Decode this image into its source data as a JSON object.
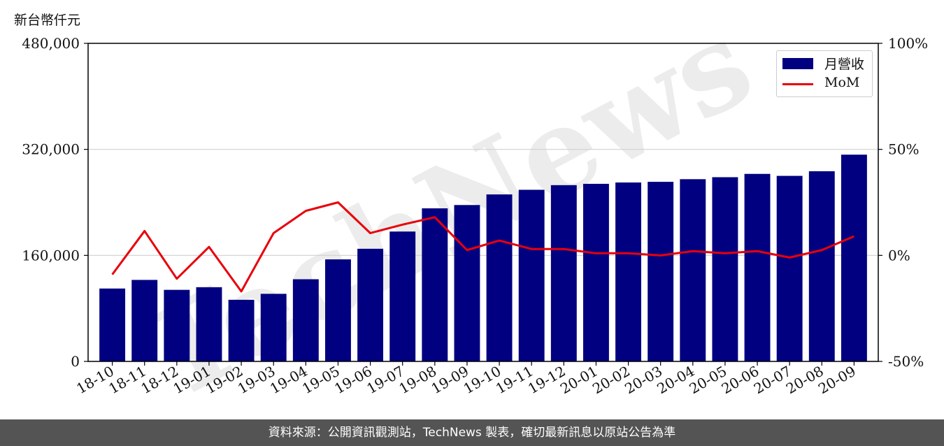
{
  "unit_label": "新台幣仟元",
  "footer_text": "資料來源：公開資訊觀測站，TechNews 製表，確切最新訊息以原站公告為準",
  "watermark_text": "TechNews",
  "colors": {
    "bar": "#000080",
    "line": "#e8000b",
    "footer_bg": "#545454",
    "grid": "#d0d0d0"
  },
  "chart_data": {
    "type": "bar",
    "categories": [
      "18-10",
      "18-11",
      "18-12",
      "19-01",
      "19-02",
      "19-03",
      "19-04",
      "19-05",
      "19-06",
      "19-07",
      "19-08",
      "19-09",
      "19-10",
      "19-11",
      "19-12",
      "20-01",
      "20-02",
      "20-03",
      "20-04",
      "20-05",
      "20-06",
      "20-07",
      "20-08",
      "20-09"
    ],
    "series": [
      {
        "name": "月營收",
        "type": "bar",
        "axis": "left",
        "values": [
          110000,
          123000,
          108000,
          112000,
          93000,
          102000,
          124000,
          154000,
          170000,
          196000,
          231000,
          236000,
          252000,
          259000,
          266000,
          268000,
          270000,
          271000,
          275000,
          278000,
          283000,
          280000,
          287000,
          312000
        ]
      },
      {
        "name": "MoM",
        "type": "line",
        "axis": "right",
        "values": [
          -9,
          11.5,
          -11,
          4,
          -17,
          10.5,
          21,
          25,
          10.5,
          14.5,
          18,
          2.5,
          7,
          3,
          3,
          1,
          1,
          0,
          2,
          1,
          2,
          -1,
          2.5,
          9
        ]
      }
    ],
    "left_axis": {
      "ylim": [
        0,
        480000
      ],
      "ticks": [
        "0",
        "160,000",
        "320,000",
        "480,000"
      ],
      "tick_values": [
        0,
        160000,
        320000,
        480000
      ]
    },
    "right_axis": {
      "ylim": [
        -50,
        100
      ],
      "ticks": [
        "-50%",
        "0%",
        "50%",
        "100%"
      ],
      "tick_values": [
        -50,
        0,
        50,
        100
      ]
    },
    "grid": "horizontal",
    "legend_position": "top-right"
  }
}
